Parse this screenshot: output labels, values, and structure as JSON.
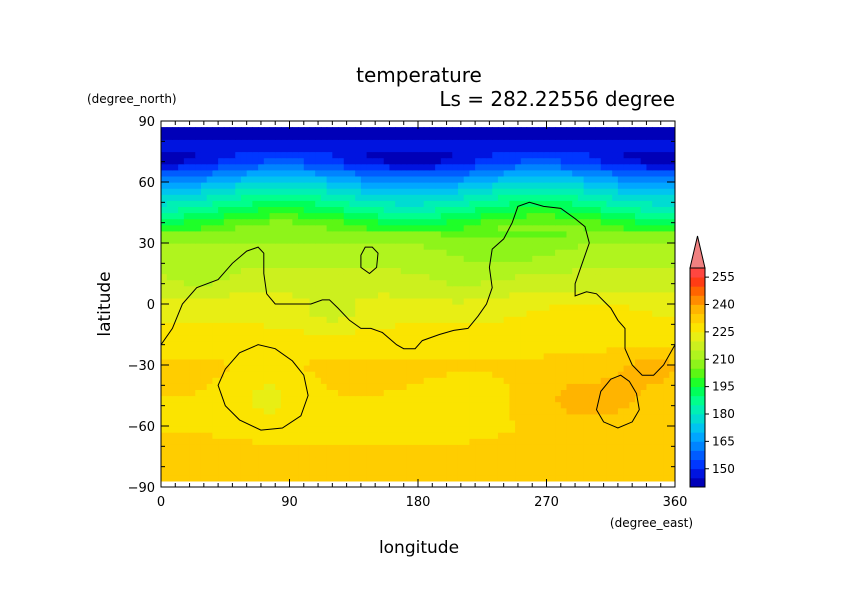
{
  "chart_data": {
    "type": "heatmap",
    "title": "temperature",
    "subtitle": "Ls = 282.22556 degree",
    "xlabel": "longitude",
    "ylabel": "latitude",
    "x_units": "(degree_east)",
    "y_units": "(degree_north)",
    "xlim": [
      0,
      360
    ],
    "ylim": [
      -90,
      90
    ],
    "x_ticks": [
      0,
      90,
      180,
      270,
      360
    ],
    "y_ticks": [
      -90,
      -60,
      -30,
      0,
      30,
      60,
      90
    ],
    "data_lat_range": [
      -87,
      87
    ],
    "colorbar": {
      "levels": [
        140,
        145,
        150,
        155,
        160,
        165,
        170,
        175,
        180,
        185,
        190,
        195,
        200,
        205,
        210,
        215,
        220,
        225,
        230,
        235,
        240,
        245,
        250,
        255,
        260
      ],
      "colors": [
        "#0000b8",
        "#0014e0",
        "#0037ff",
        "#005cff",
        "#0084ff",
        "#00a6ff",
        "#00c4f0",
        "#00dcd2",
        "#00f0b4",
        "#00ff8c",
        "#00ff5a",
        "#1eff28",
        "#5cf614",
        "#8ef41a",
        "#b0f41e",
        "#ccf01e",
        "#e8ee14",
        "#fbe400",
        "#ffcd00",
        "#ffb400",
        "#ff8c00",
        "#ff6400",
        "#ff3c14",
        "#ff4640"
      ],
      "tick_labels": [
        "150",
        "165",
        "180",
        "195",
        "210",
        "225",
        "240",
        "255"
      ],
      "extend": "max",
      "extend_color": "#f08080"
    },
    "latitude_profile": {
      "lat": [
        -87,
        -75,
        -60,
        -45,
        -30,
        -20,
        -10,
        0,
        10,
        20,
        30,
        40,
        45,
        50,
        55,
        60,
        65,
        70,
        75,
        80,
        87
      ],
      "temp": [
        232,
        233,
        229,
        230,
        231,
        227,
        225,
        222,
        218,
        214,
        210,
        200,
        192,
        185,
        178,
        170,
        160,
        150,
        147,
        145,
        143
      ]
    },
    "anomalies": [
      {
        "lon": 25,
        "lat": 15,
        "rx": 20,
        "ry": 8,
        "delta": -5
      },
      {
        "lon": 120,
        "lat": -5,
        "rx": 25,
        "ry": 7,
        "delta": -5
      },
      {
        "lon": 210,
        "lat": 10,
        "rx": 30,
        "ry": 10,
        "delta": -3
      },
      {
        "lon": 300,
        "lat": -8,
        "rx": 45,
        "ry": 12,
        "delta": 5
      },
      {
        "lon": 300,
        "lat": -48,
        "rx": 55,
        "ry": 15,
        "delta": 7
      },
      {
        "lon": 345,
        "lat": -30,
        "rx": 25,
        "ry": 10,
        "delta": 5
      },
      {
        "lon": 230,
        "lat": -45,
        "rx": 40,
        "ry": 12,
        "delta": -3
      },
      {
        "lon": 75,
        "lat": -45,
        "rx": 25,
        "ry": 15,
        "delta": -6
      },
      {
        "lon": 150,
        "lat": -65,
        "rx": 60,
        "ry": 6,
        "delta": -4
      },
      {
        "lon": 240,
        "lat": 25,
        "rx": 40,
        "ry": 10,
        "delta": -4
      }
    ],
    "topography_contours": [
      {
        "name": "highlands-boundary",
        "closed": false,
        "points": [
          [
            0,
            -20
          ],
          [
            8,
            -12
          ],
          [
            15,
            0
          ],
          [
            25,
            8
          ],
          [
            40,
            12
          ],
          [
            50,
            20
          ],
          [
            60,
            26
          ],
          [
            68,
            28
          ],
          [
            72,
            25
          ],
          [
            72,
            15
          ],
          [
            74,
            5
          ],
          [
            80,
            0
          ],
          [
            90,
            0
          ],
          [
            105,
            0
          ],
          [
            113,
            2
          ],
          [
            118,
            2
          ],
          [
            124,
            -2
          ],
          [
            132,
            -8
          ],
          [
            140,
            -12
          ],
          [
            147,
            -12
          ],
          [
            155,
            -14
          ],
          [
            165,
            -20
          ],
          [
            170,
            -22
          ],
          [
            178,
            -22
          ],
          [
            183,
            -18
          ],
          [
            195,
            -15
          ],
          [
            205,
            -13
          ],
          [
            215,
            -12
          ],
          [
            222,
            -6
          ],
          [
            228,
            0
          ],
          [
            232,
            8
          ],
          [
            230,
            18
          ],
          [
            232,
            27
          ],
          [
            240,
            32
          ],
          [
            246,
            40
          ],
          [
            250,
            48
          ],
          [
            258,
            50
          ],
          [
            268,
            48
          ],
          [
            280,
            47
          ],
          [
            290,
            42
          ],
          [
            297,
            38
          ],
          [
            300,
            30
          ],
          [
            296,
            22
          ],
          [
            290,
            10
          ],
          [
            290,
            4
          ],
          [
            298,
            6
          ],
          [
            305,
            5
          ],
          [
            315,
            -2
          ],
          [
            320,
            -8
          ],
          [
            325,
            -12
          ],
          [
            325,
            -22
          ],
          [
            330,
            -30
          ],
          [
            337,
            -35
          ],
          [
            345,
            -35
          ],
          [
            352,
            -30
          ],
          [
            360,
            -20
          ]
        ]
      },
      {
        "name": "tharsis-ring",
        "closed": true,
        "points": [
          [
            140,
            24
          ],
          [
            143,
            28
          ],
          [
            148,
            28
          ],
          [
            152,
            25
          ],
          [
            151,
            18
          ],
          [
            146,
            15
          ],
          [
            140,
            18
          ]
        ]
      },
      {
        "name": "argyre-ring",
        "closed": true,
        "points": [
          [
            40,
            -40
          ],
          [
            45,
            -32
          ],
          [
            55,
            -24
          ],
          [
            68,
            -20
          ],
          [
            80,
            -22
          ],
          [
            92,
            -28
          ],
          [
            100,
            -35
          ],
          [
            103,
            -45
          ],
          [
            98,
            -55
          ],
          [
            85,
            -61
          ],
          [
            70,
            -62
          ],
          [
            55,
            -57
          ],
          [
            45,
            -50
          ]
        ]
      },
      {
        "name": "hellas-ring",
        "closed": true,
        "points": [
          [
            305,
            -52
          ],
          [
            308,
            -43
          ],
          [
            315,
            -37
          ],
          [
            322,
            -35
          ],
          [
            328,
            -38
          ],
          [
            333,
            -44
          ],
          [
            335,
            -52
          ],
          [
            330,
            -58
          ],
          [
            320,
            -61
          ],
          [
            310,
            -58
          ]
        ]
      }
    ]
  }
}
